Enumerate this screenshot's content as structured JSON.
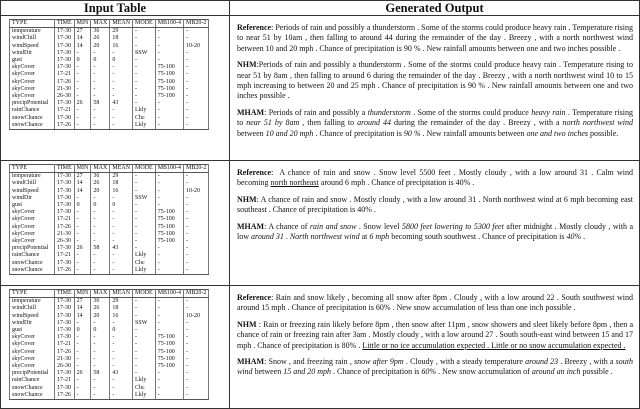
{
  "headers": {
    "input": "Input Table",
    "output": "Generated Output"
  },
  "columns": [
    "TYPE",
    "TIME",
    "MIN",
    "MAX",
    "MEAN",
    "MODE",
    "MB100-4",
    "MB20-2"
  ],
  "examples": [
    {
      "table": [
        [
          "temperature",
          "17-30",
          "27",
          "36",
          "29",
          "-",
          "-",
          "-"
        ],
        [
          "windChill",
          "17-30",
          "14",
          "26",
          "18",
          "-",
          "-",
          "-"
        ],
        [
          "windSpeed",
          "17-30",
          "14",
          "20",
          "16",
          "-",
          "-",
          "10-20"
        ],
        [
          "windDir",
          "17-30",
          "-",
          "-",
          "-",
          "SSW",
          "-",
          "-"
        ],
        [
          "gust",
          "17-30",
          "0",
          "0",
          "0",
          "-",
          "-",
          "-"
        ],
        [
          "skyCover",
          "17-30",
          "-",
          "-",
          "-",
          "-",
          "75-100",
          "-"
        ],
        [
          "skyCover",
          "17-21",
          "-",
          "-",
          "-",
          "-",
          "75-100",
          "-"
        ],
        [
          "skyCover",
          "17-26",
          "-",
          "-",
          "-",
          "-",
          "75-100",
          "-"
        ],
        [
          "skyCover",
          "21-30",
          "-",
          "-",
          "-",
          "-",
          "75-100",
          "-"
        ],
        [
          "skyCover",
          "26-30",
          "-",
          "-",
          "-",
          "-",
          "75-100",
          "-"
        ],
        [
          "precipPotential",
          "17-30",
          "26",
          "58",
          "43",
          "-",
          "-",
          "-"
        ],
        [
          "rainChance",
          "17-21",
          "-",
          "-",
          "-",
          "Lkly",
          "-",
          "-"
        ],
        [
          "snowChance",
          "17-30",
          "-",
          "-",
          "-",
          "Chc",
          "-",
          "-"
        ],
        [
          "snowChance",
          "17-26",
          "-",
          "-",
          "-",
          "Lkly",
          "-",
          "-"
        ]
      ],
      "outputs": [
        {
          "label": "Reference",
          "sep": ": ",
          "segments": [
            {
              "t": "Periods of rain and possibly a thunderstorm . Some of the storms could produce heavy rain . Temperature rising to near 51 by 10am , then falling to around 44 during the remainder of the day . Breezy , with a north northwest wind between 10 and 20 mph . Chance of precipitation is 90 % . New rainfall amounts between one and two inches possible ."
            }
          ]
        },
        {
          "label": "NHM",
          "sep": ":",
          "segments": [
            {
              "t": "Periods of rain and possibly a thunderstorm .  Some of the storms could produce heavy rain .  Temperature rising to near 51 by 8am , then falling to around 6 during the remainder of the day . Breezy , with a north northwest wind 10 to 15 mph increasing to between 20 and 25 mph . Chance of precipitation is 90 % . New rainfall amounts between one and two inches possible ."
            }
          ]
        },
        {
          "label": "MHAM",
          "sep": ": ",
          "segments": [
            {
              "t": "Periods of rain and possibly a "
            },
            {
              "t": "thunderstorm",
              "s": "it"
            },
            {
              "t": " . Some of the storms could produce "
            },
            {
              "t": "heavy rain",
              "s": "it"
            },
            {
              "t": " . Temperature rising to "
            },
            {
              "t": "near 51 by 8am",
              "s": "it"
            },
            {
              "t": " , then falling to "
            },
            {
              "t": "around 44",
              "s": "it"
            },
            {
              "t": " during the remainder of the day . Breezy , with a "
            },
            {
              "t": "north northwest wind",
              "s": "it"
            },
            {
              "t": " between "
            },
            {
              "t": "10 and 20 mph",
              "s": "it"
            },
            {
              "t": " . Chance of precipitation is "
            },
            {
              "t": "90 %",
              "s": "it"
            },
            {
              "t": " . New rainfall amounts between "
            },
            {
              "t": "one and two inches",
              "s": "it"
            },
            {
              "t": " possible."
            }
          ]
        }
      ]
    },
    {
      "table": [
        [
          "temperature",
          "17-30",
          "27",
          "36",
          "29",
          "-",
          "-",
          "-"
        ],
        [
          "windChill",
          "17-30",
          "14",
          "26",
          "18",
          "-",
          "-",
          "-"
        ],
        [
          "windSpeed",
          "17-30",
          "14",
          "20",
          "16",
          "-",
          "-",
          "10-20"
        ],
        [
          "windDir",
          "17-30",
          "-",
          "-",
          "-",
          "SSW",
          "-",
          "-"
        ],
        [
          "gust",
          "17-30",
          "0",
          "0",
          "0",
          "-",
          "-",
          "-"
        ],
        [
          "skyCover",
          "17-30",
          "-",
          "-",
          "-",
          "-",
          "75-100",
          "-"
        ],
        [
          "skyCover",
          "17-21",
          "-",
          "-",
          "-",
          "-",
          "75-100",
          "-"
        ],
        [
          "skyCover",
          "17-26",
          "-",
          "-",
          "-",
          "-",
          "75-100",
          "-"
        ],
        [
          "skyCover",
          "21-30",
          "-",
          "-",
          "-",
          "-",
          "75-100",
          "-"
        ],
        [
          "skyCover",
          "26-30",
          "-",
          "-",
          "-",
          "-",
          "75-100",
          "-"
        ],
        [
          "precipPotential",
          "17-30",
          "26",
          "58",
          "43",
          "-",
          "-",
          "-"
        ],
        [
          "rainChance",
          "17-21",
          "-",
          "-",
          "-",
          "Lkly",
          "-",
          "-"
        ],
        [
          "snowChance",
          "17-30",
          "-",
          "-",
          "-",
          "Chc",
          "-",
          "-"
        ],
        [
          "snowChance",
          "17-26",
          "-",
          "-",
          "-",
          "Lkly",
          "-",
          "-"
        ]
      ],
      "outputs": [
        {
          "label": "Reference",
          "sep": ":  ",
          "segments": [
            {
              "t": "A chance of rain and snow .  Snow level 5500 feet .  Mostly cloudy , with a low around 31 .  Calm wind becoming "
            },
            {
              "t": "north northeast",
              "s": "ul"
            },
            {
              "t": " around 6 mph . Chance of precipitation is 40% ."
            }
          ]
        },
        {
          "label": "NHM",
          "sep": ": ",
          "segments": [
            {
              "t": "A chance of rain and snow . Mostly cloudy , with a low around 31 . North northwest wind at 6 mph becoming east southeast . Chance of precipitation is 40% ."
            }
          ]
        },
        {
          "label": "MHAM",
          "sep": ": ",
          "segments": [
            {
              "t": "A chance of "
            },
            {
              "t": "rain and snow",
              "s": "it"
            },
            {
              "t": " . Snow level "
            },
            {
              "t": "5800 feet lowering to 5300 feet",
              "s": "it"
            },
            {
              "t": " after midnight . Mostly cloudy , with a low "
            },
            {
              "t": "around 31",
              "s": "it"
            },
            {
              "t": " . "
            },
            {
              "t": "North northwest wind",
              "s": "it"
            },
            {
              "t": " at "
            },
            {
              "t": "6 mph",
              "s": "it"
            },
            {
              "t": " becoming south southwest . Chance of precipitation is "
            },
            {
              "t": "40%",
              "s": "it"
            },
            {
              "t": " ."
            }
          ]
        }
      ]
    },
    {
      "table": [
        [
          "temperature",
          "17-30",
          "27",
          "36",
          "29",
          "-",
          "-",
          "-"
        ],
        [
          "windChill",
          "17-30",
          "14",
          "26",
          "18",
          "-",
          "-",
          "-"
        ],
        [
          "windSpeed",
          "17-30",
          "14",
          "20",
          "16",
          "-",
          "-",
          "10-20"
        ],
        [
          "windDir",
          "17-30",
          "-",
          "-",
          "-",
          "SSW",
          "-",
          "-"
        ],
        [
          "gust",
          "17-30",
          "0",
          "0",
          "0",
          "-",
          "-",
          "-"
        ],
        [
          "skyCover",
          "17-30",
          "-",
          "-",
          "-",
          "-",
          "75-100",
          "-"
        ],
        [
          "skyCover",
          "17-21",
          "-",
          "-",
          "-",
          "-",
          "75-100",
          "-"
        ],
        [
          "skyCover",
          "17-26",
          "-",
          "-",
          "-",
          "-",
          "75-100",
          "-"
        ],
        [
          "skyCover",
          "21-30",
          "-",
          "-",
          "-",
          "-",
          "75-100",
          "-"
        ],
        [
          "skyCover",
          "26-30",
          "-",
          "-",
          "-",
          "-",
          "75-100",
          "-"
        ],
        [
          "precipPotential",
          "17-30",
          "26",
          "58",
          "43",
          "-",
          "-",
          "-"
        ],
        [
          "rainChance",
          "17-21",
          "-",
          "-",
          "-",
          "Lkly",
          "-",
          "-"
        ],
        [
          "snowChance",
          "17-30",
          "-",
          "-",
          "-",
          "Chc",
          "-",
          "-"
        ],
        [
          "snowChance",
          "17-26",
          "-",
          "-",
          "-",
          "Lkly",
          "-",
          "-"
        ]
      ],
      "outputs": [
        {
          "label": "Reference",
          "sep": ": ",
          "segments": [
            {
              "t": "Rain and snow likely , becoming all snow after 8pm . Cloudy , with a low around 22 . South southwest wind around 15 mph . Chance of precipitation is 60% . New snow accumulation of less than one inch possible ."
            }
          ]
        },
        {
          "label": "NHM",
          "sep": " : ",
          "segments": [
            {
              "t": "Rain or freezing rain likely before 8pm , then snow after 11pm , snow showers and sleet likely before 8pm , then a chance of rain or freezing rain after 3am .  Mostly cloudy , with a low around 27 .  South south-east wind between 15 and 17 mph .  Chance of precipitation is 80% .  "
            },
            {
              "t": "Little or no ice accumulation expected . Little or no snow accumulation expected .",
              "s": "ul"
            }
          ]
        },
        {
          "label": "MHAM",
          "sep": ": ",
          "segments": [
            {
              "t": "Snow , and freezing rain , "
            },
            {
              "t": "snow after 9pm",
              "s": "it"
            },
            {
              "t": " . Cloudy , with a steady temperature "
            },
            {
              "t": "around 23",
              "s": "it"
            },
            {
              "t": " . Breezy , with a "
            },
            {
              "t": "south wind",
              "s": "it"
            },
            {
              "t": " between "
            },
            {
              "t": "15 and 20 mph",
              "s": "it"
            },
            {
              "t": " . Chance of precipitation is "
            },
            {
              "t": "60%",
              "s": "it"
            },
            {
              "t": " . New snow accumulation of "
            },
            {
              "t": "around an inch",
              "s": "it"
            },
            {
              "t": " possible ."
            }
          ]
        }
      ]
    }
  ]
}
